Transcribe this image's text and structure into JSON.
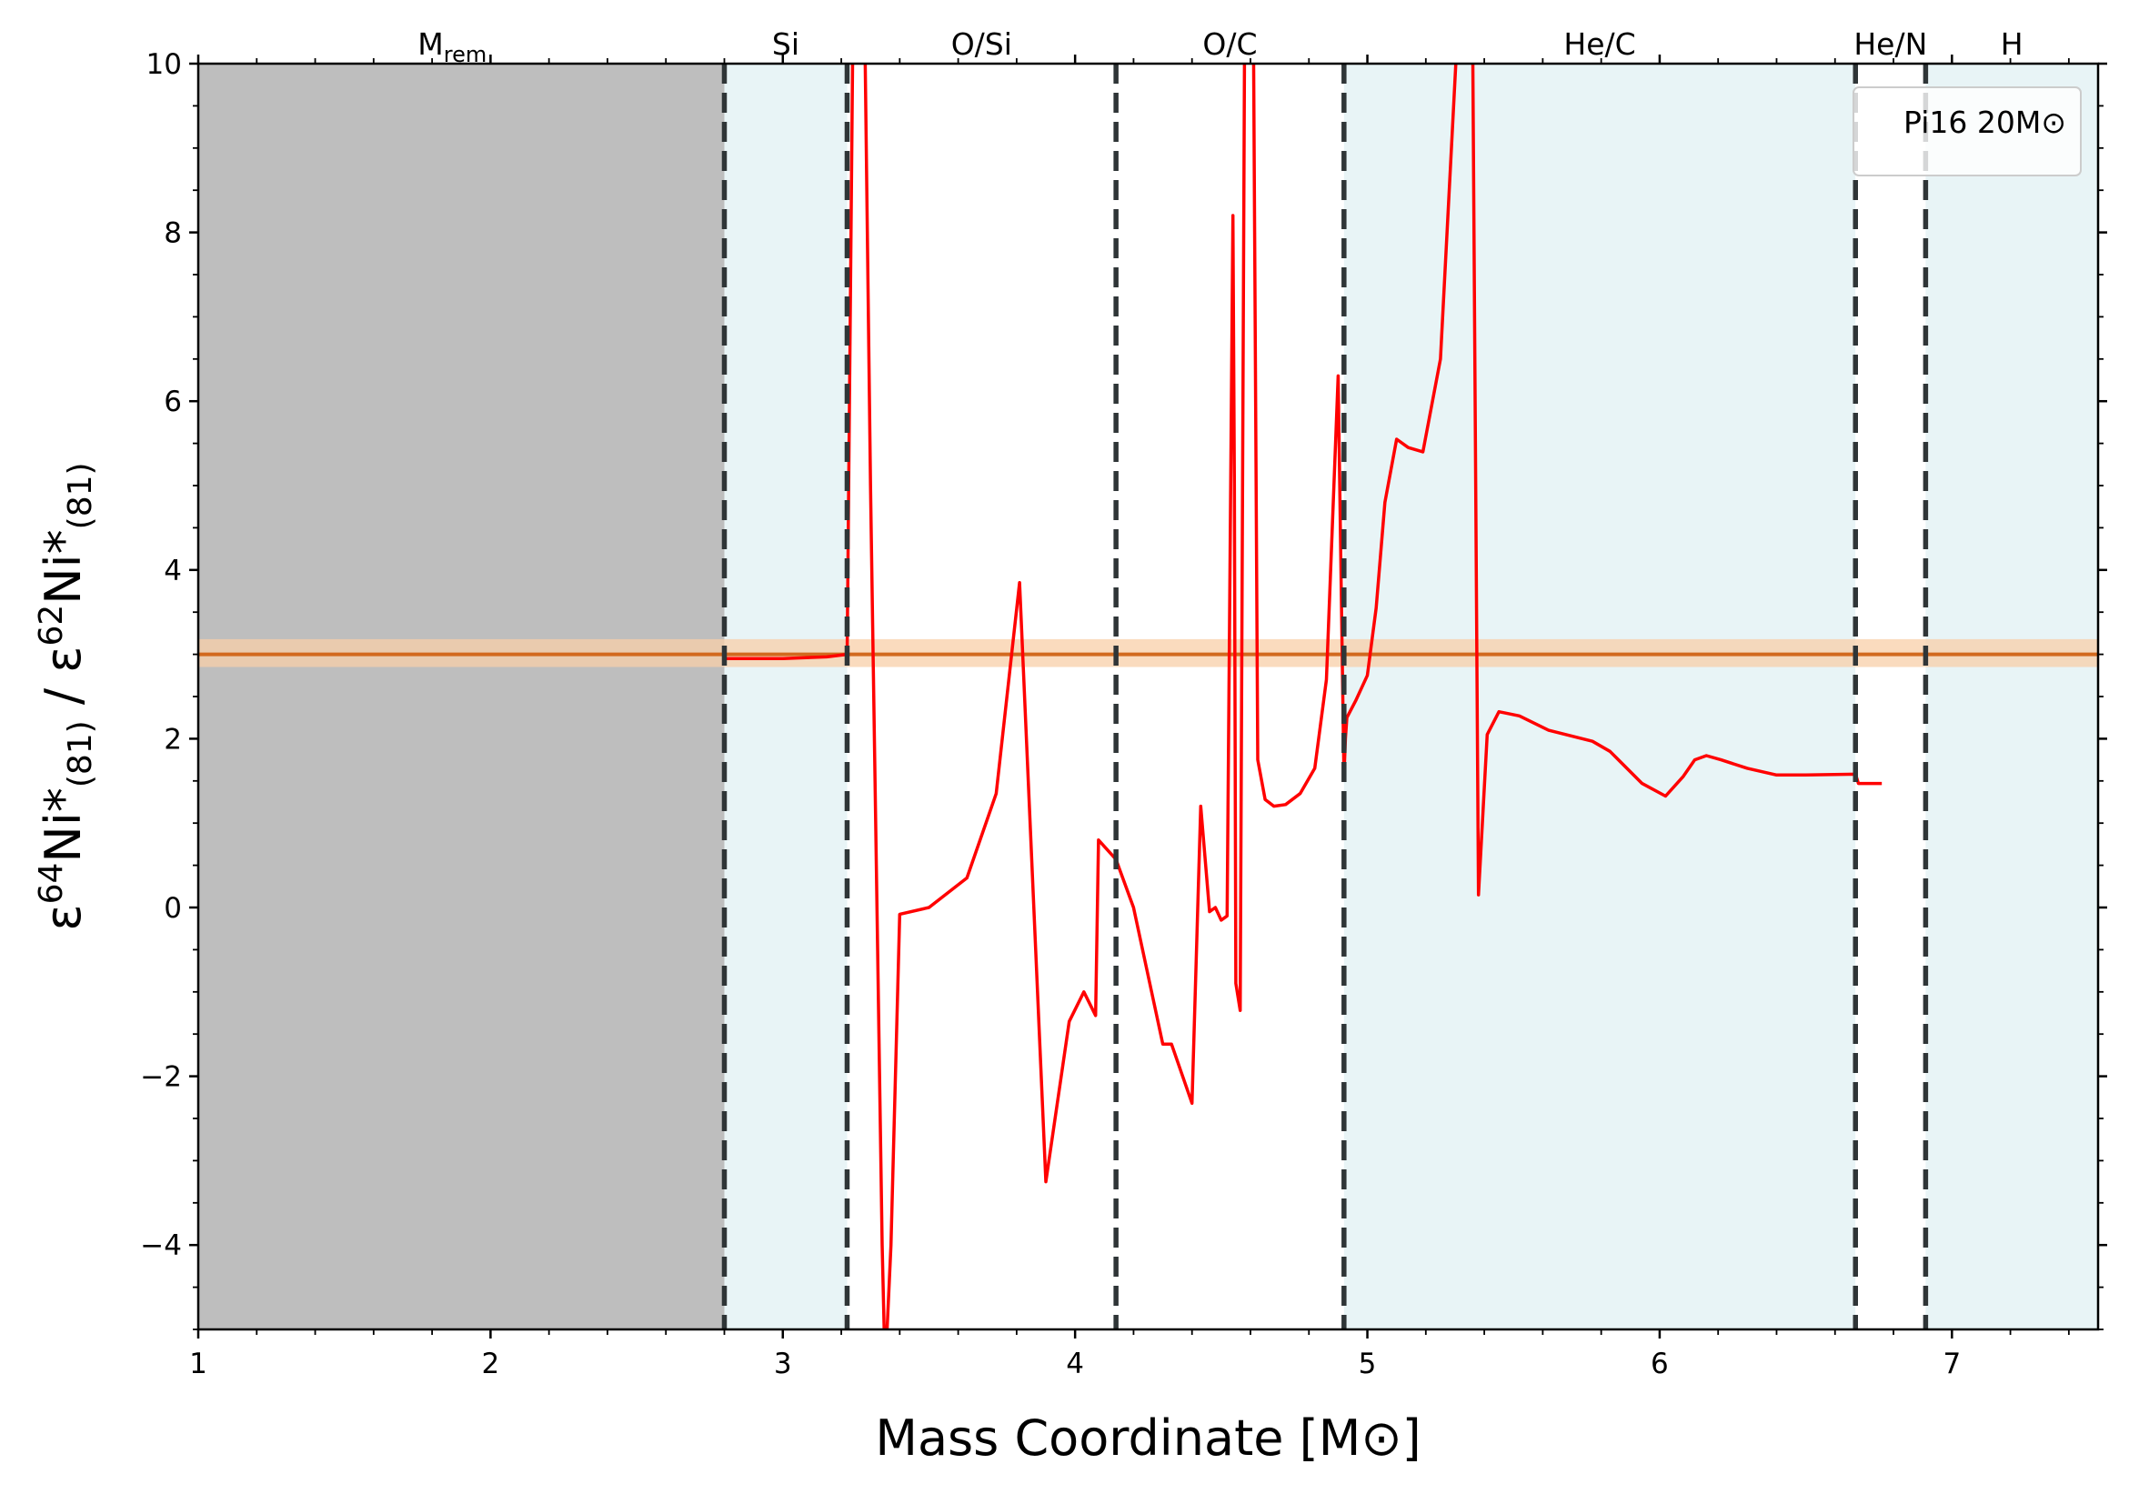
{
  "chart_data": {
    "type": "line",
    "xlabel": "Mass Coordinate [M⊙]",
    "ylabel": {
      "eps1": "ε",
      "iso1": "64",
      "el1": "Ni*",
      "sub1": "(81)",
      "div": " / ",
      "eps2": "ε",
      "iso2": "62",
      "el2": "Ni*",
      "sub2": "(81)"
    },
    "xlim": [
      1,
      7.5
    ],
    "ylim": [
      -5,
      10
    ],
    "x_ticks": [
      {
        "value": 1,
        "label": "1"
      },
      {
        "value": 2,
        "label": "2"
      },
      {
        "value": 3,
        "label": "3"
      },
      {
        "value": 4,
        "label": "4"
      },
      {
        "value": 5,
        "label": "5"
      },
      {
        "value": 6,
        "label": "6"
      },
      {
        "value": 7,
        "label": "7"
      }
    ],
    "y_ticks": [
      {
        "value": -4,
        "label": "−4"
      },
      {
        "value": -2,
        "label": "−2"
      },
      {
        "value": 0,
        "label": "0"
      },
      {
        "value": 2,
        "label": "2"
      },
      {
        "value": 4,
        "label": "4"
      },
      {
        "value": 6,
        "label": "6"
      },
      {
        "value": 8,
        "label": "8"
      },
      {
        "value": 10,
        "label": "10"
      }
    ],
    "legend": {
      "text": "Pi16 20M⊙",
      "position": "top-right"
    },
    "zones": [
      {
        "label": "M",
        "sub": "rem",
        "from": 1.0,
        "to": 2.8,
        "fill": "#bebebe"
      },
      {
        "label": "Si",
        "from": 2.8,
        "to": 3.22,
        "fill": "#e8f4f6"
      },
      {
        "label": "O/Si",
        "from": 3.22,
        "to": 4.14,
        "fill": "#ffffff"
      },
      {
        "label": "O/C",
        "from": 4.14,
        "to": 4.92,
        "fill": "#ffffff"
      },
      {
        "label": "He/C",
        "from": 4.92,
        "to": 6.67,
        "fill": "#e8f4f6"
      },
      {
        "label": "He/N",
        "from": 6.67,
        "to": 6.91,
        "fill": "#ffffff"
      },
      {
        "label": "H",
        "from": 6.91,
        "to": 7.5,
        "fill": "#e8f4f6"
      }
    ],
    "boundaries": [
      2.8,
      3.22,
      4.14,
      4.92,
      6.67,
      6.91
    ],
    "reference": {
      "value": 3.0,
      "band": [
        2.85,
        3.18
      ],
      "color": "#d2691e",
      "band_color": "#f8cfa8"
    },
    "series": [
      {
        "color": "#ff0000",
        "x": [
          2.8,
          3.0,
          3.15,
          3.22,
          3.24,
          3.25,
          3.26,
          3.28,
          3.3,
          3.32,
          3.34,
          3.35,
          3.37,
          3.4,
          3.5,
          3.63,
          3.73,
          3.81,
          3.9,
          3.98,
          4.03,
          4.07,
          4.08,
          4.14,
          4.2,
          4.3,
          4.33,
          4.4,
          4.43,
          4.46,
          4.48,
          4.5,
          4.52,
          4.54,
          4.545,
          4.55,
          4.565,
          4.58,
          4.59,
          4.6,
          4.61,
          4.625,
          4.65,
          4.68,
          4.72,
          4.77,
          4.82,
          4.86,
          4.9,
          4.92,
          4.925,
          4.93,
          4.96,
          5.0,
          5.03,
          5.06,
          5.1,
          5.14,
          5.19,
          5.25,
          5.31,
          5.32,
          5.34,
          5.36,
          5.38,
          5.41,
          5.45,
          5.52,
          5.62,
          5.77,
          5.83,
          5.94,
          6.02,
          6.08,
          6.12,
          6.16,
          6.21,
          6.3,
          6.4,
          6.5,
          6.67,
          6.68,
          6.76
        ],
        "y": [
          2.95,
          2.95,
          2.97,
          3.0,
          10.5,
          10.5,
          10.5,
          10.5,
          5.0,
          0.5,
          -4.0,
          -5.5,
          -4.0,
          -0.08,
          0.0,
          0.35,
          1.35,
          3.85,
          -3.25,
          -1.35,
          -1.0,
          -1.28,
          0.8,
          0.57,
          0.0,
          -1.62,
          -1.62,
          -2.32,
          1.2,
          -0.05,
          0.0,
          -0.15,
          -0.1,
          8.2,
          5.0,
          -0.9,
          -1.22,
          10.5,
          10.5,
          10.5,
          10.5,
          1.75,
          1.28,
          1.2,
          1.22,
          1.35,
          1.65,
          2.7,
          6.3,
          1.55,
          2.0,
          2.25,
          2.45,
          2.75,
          3.55,
          4.8,
          5.55,
          5.45,
          5.4,
          6.5,
          10.5,
          10.5,
          10.5,
          10.5,
          0.15,
          2.05,
          2.32,
          2.27,
          2.1,
          1.97,
          1.85,
          1.47,
          1.32,
          1.55,
          1.75,
          1.8,
          1.75,
          1.65,
          1.57,
          1.57,
          1.58,
          1.47,
          1.47
        ]
      }
    ]
  }
}
